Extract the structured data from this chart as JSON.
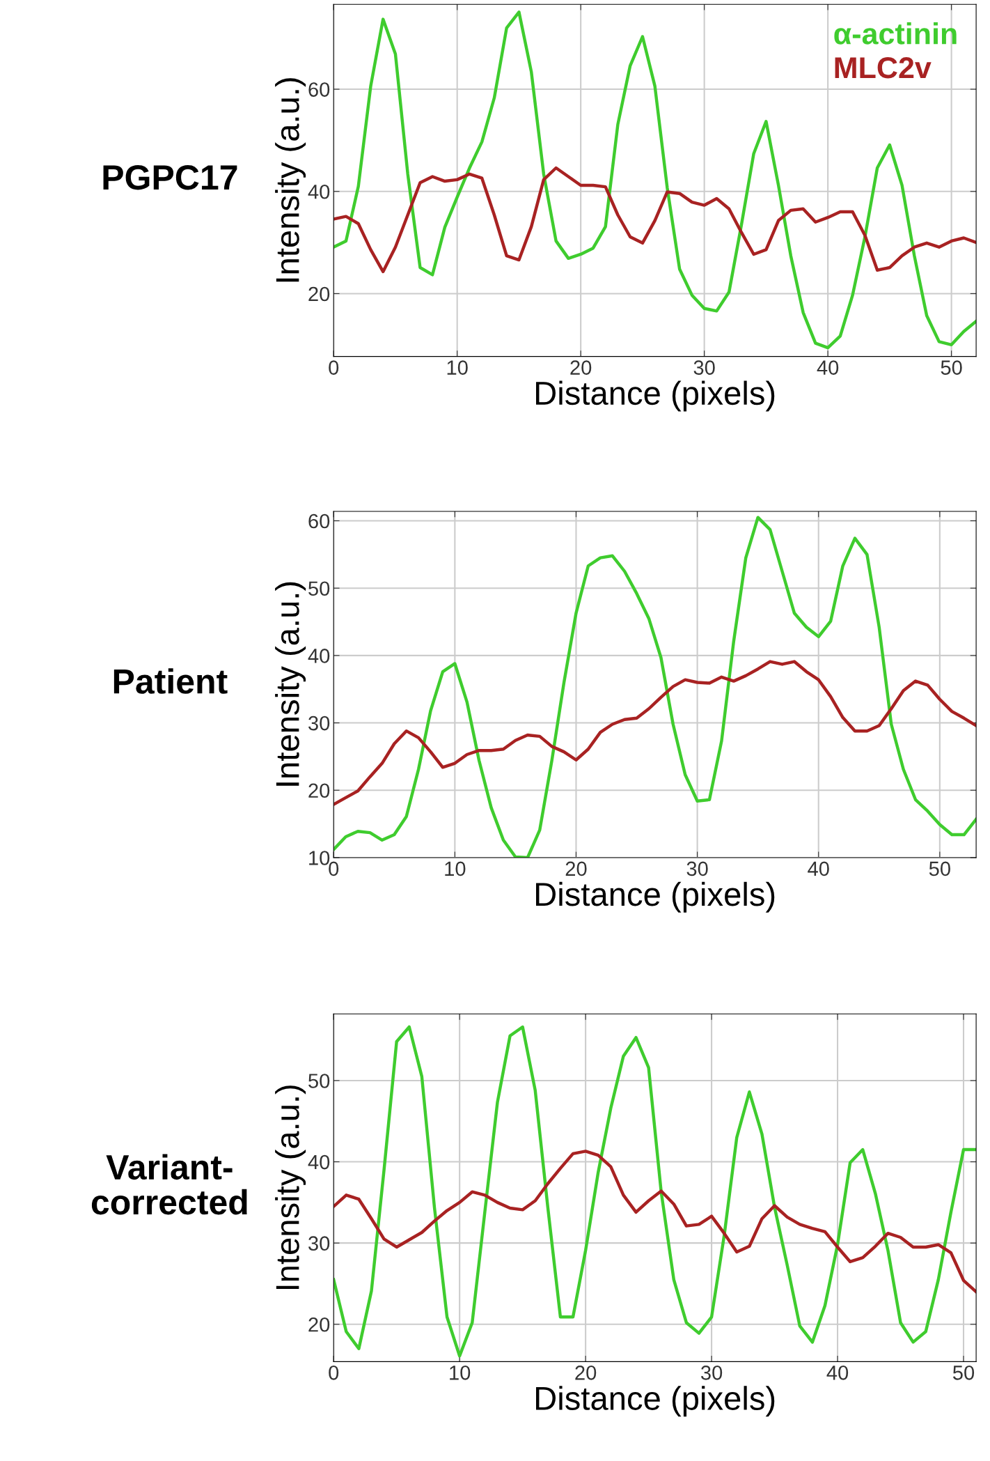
{
  "chart_data": [
    {
      "type": "line",
      "title": "PGPC17",
      "xlabel": "Distance (pixels)",
      "ylabel": "Intensity (a.u.)",
      "xlim": [
        0,
        52
      ],
      "ylim": [
        7.7,
        76.6
      ],
      "xticks": [
        0,
        10,
        20,
        30,
        40,
        50
      ],
      "yticks": [
        20,
        40,
        60
      ],
      "grid": true,
      "legend": "top right",
      "x": [
        0,
        1,
        2,
        3,
        4,
        5,
        6,
        7,
        8,
        9,
        10,
        11,
        12,
        13,
        14,
        15,
        16,
        17,
        18,
        19,
        20,
        21,
        22,
        23,
        24,
        25,
        26,
        27,
        28,
        29,
        30,
        31,
        32,
        33,
        34,
        35,
        36,
        37,
        38,
        39,
        40,
        41,
        42,
        43,
        44,
        45,
        46,
        47,
        48,
        49,
        50,
        51,
        52
      ],
      "series": [
        {
          "name": "α-actinin",
          "color": "#3fcc2e",
          "values": [
            29.1,
            30.3,
            41,
            60.6,
            73.7,
            66.9,
            43.4,
            25.1,
            23.7,
            33,
            38.9,
            44.6,
            49.7,
            58.3,
            72,
            75.1,
            63.4,
            43.4,
            30.3,
            26.9,
            27.7,
            28.9,
            33.1,
            53.1,
            64.6,
            70.3,
            60.6,
            40.7,
            24.8,
            19.7,
            17.1,
            16.6,
            20.3,
            33.4,
            47.4,
            53.7,
            41.2,
            27.4,
            16.3,
            10.3,
            9.4,
            11.7,
            19.7,
            31.1,
            44.6,
            49.1,
            41.2,
            27.4,
            15.7,
            10.6,
            10,
            12.6,
            14.6
          ]
        },
        {
          "name": "MLC2v",
          "color": "#a82222",
          "values": [
            34.6,
            35.1,
            33.7,
            28.6,
            24.3,
            29.1,
            35.4,
            41.7,
            42.9,
            42,
            42.3,
            43.4,
            42.6,
            35.4,
            27.4,
            26.6,
            33.1,
            42.3,
            44.6,
            42.9,
            41.2,
            41.2,
            40.9,
            35.4,
            31.1,
            29.9,
            34.3,
            39.9,
            39.6,
            37.9,
            37.3,
            38.6,
            36.6,
            32,
            27.7,
            28.6,
            34.3,
            36.3,
            36.6,
            34,
            34.9,
            36,
            36,
            31.4,
            24.6,
            25.1,
            27.4,
            29.1,
            29.9,
            29.1,
            30.3,
            30.9,
            30
          ]
        }
      ]
    },
    {
      "type": "line",
      "title": "Patient",
      "xlabel": "Distance (pixels)",
      "ylabel": "Intensity (a.u.)",
      "xlim": [
        0,
        53
      ],
      "ylim": [
        10,
        61.4
      ],
      "xticks": [
        0,
        10,
        20,
        30,
        40,
        50
      ],
      "yticks": [
        10,
        20,
        30,
        40,
        50,
        60
      ],
      "grid": true,
      "x": [
        0,
        1,
        2,
        3,
        4,
        5,
        6,
        7,
        8,
        9,
        10,
        11,
        12,
        13,
        14,
        15,
        16,
        17,
        18,
        19,
        20,
        21,
        22,
        23,
        24,
        25,
        26,
        27,
        28,
        29,
        30,
        31,
        32,
        33,
        34,
        35,
        36,
        37,
        38,
        39,
        40,
        41,
        42,
        43,
        44,
        45,
        46,
        47,
        48,
        49,
        50,
        51,
        52,
        53
      ],
      "series": [
        {
          "color": "#3fcc2e",
          "values": [
            11.2,
            13.1,
            13.9,
            13.7,
            12.6,
            13.4,
            16.1,
            23.1,
            31.8,
            37.6,
            38.8,
            33.1,
            24.4,
            17.4,
            12.6,
            10.1,
            10,
            14.1,
            24.4,
            36,
            46.3,
            53.3,
            54.5,
            54.8,
            52.5,
            49.2,
            45.5,
            39.7,
            29.8,
            22.3,
            18.4,
            18.6,
            27.3,
            42.1,
            54.5,
            60.5,
            58.7,
            52.5,
            46.3,
            44.2,
            42.8,
            45.1,
            53.3,
            57.4,
            55,
            44.2,
            29.8,
            23.1,
            18.6,
            16.9,
            14.9,
            13.4,
            13.4,
            15.7
          ]
        },
        {
          "color": "#a82222",
          "values": [
            17.9,
            18.9,
            19.9,
            22,
            24,
            26.9,
            28.8,
            27.8,
            25.7,
            23.4,
            24,
            25.3,
            25.9,
            25.9,
            26.1,
            27.4,
            28.2,
            28,
            26.5,
            25.7,
            24.5,
            26.1,
            28.6,
            29.8,
            30.5,
            30.7,
            32.1,
            33.8,
            35.4,
            36.4,
            36,
            35.9,
            36.8,
            36.2,
            37,
            38,
            39.1,
            38.7,
            39.1,
            37.6,
            36.4,
            33.9,
            30.8,
            28.8,
            28.8,
            29.6,
            32.1,
            34.8,
            36.2,
            35.6,
            33.5,
            31.7,
            30.7,
            29.6
          ]
        }
      ]
    },
    {
      "type": "line",
      "title": "Variant-corrected",
      "xlabel": "Distance (pixels)",
      "ylabel": "Intensity (a.u.)",
      "xlim": [
        0,
        51
      ],
      "ylim": [
        15.4,
        58.2
      ],
      "xticks": [
        0,
        10,
        20,
        30,
        40,
        50
      ],
      "yticks": [
        20,
        30,
        40,
        50
      ],
      "grid": true,
      "x": [
        0,
        1,
        2,
        3,
        4,
        5,
        6,
        7,
        8,
        9,
        10,
        11,
        12,
        13,
        14,
        15,
        16,
        17,
        18,
        19,
        20,
        21,
        22,
        23,
        24,
        25,
        26,
        27,
        28,
        29,
        30,
        31,
        32,
        33,
        34,
        35,
        36,
        37,
        38,
        39,
        40,
        41,
        42,
        43,
        44,
        45,
        46,
        47,
        48,
        49,
        50,
        51
      ],
      "series": [
        {
          "color": "#3fcc2e",
          "values": [
            25.5,
            19.1,
            17,
            24.1,
            39,
            54.8,
            56.6,
            50.5,
            34.4,
            20.9,
            16.1,
            20.2,
            33.8,
            47.3,
            55.5,
            56.6,
            48.8,
            34.4,
            20.9,
            20.9,
            29.1,
            38.7,
            46.6,
            53,
            55.3,
            51.6,
            36.3,
            25.5,
            20.2,
            18.9,
            20.9,
            30.9,
            43,
            48.6,
            43.4,
            34.4,
            27.3,
            19.8,
            17.8,
            22.3,
            29.8,
            39.9,
            41.5,
            36.1,
            29.1,
            20.2,
            17.8,
            19.1,
            25.5,
            33.8,
            41.5,
            41.5
          ]
        },
        {
          "color": "#a82222",
          "values": [
            34.5,
            35.9,
            35.4,
            33,
            30.5,
            29.5,
            30.4,
            31.3,
            32.7,
            34,
            35,
            36.3,
            35.9,
            35,
            34.3,
            34.1,
            35.2,
            37.3,
            39.2,
            41,
            41.3,
            40.8,
            39.4,
            35.9,
            33.8,
            35.2,
            36.4,
            34.8,
            32.1,
            32.3,
            33.3,
            31.2,
            28.9,
            29.6,
            33,
            34.6,
            33.2,
            32.3,
            31.8,
            31.4,
            29.5,
            27.7,
            28.2,
            29.6,
            31.2,
            30.7,
            29.5,
            29.5,
            29.8,
            28.8,
            25.4,
            24
          ]
        }
      ]
    }
  ]
}
